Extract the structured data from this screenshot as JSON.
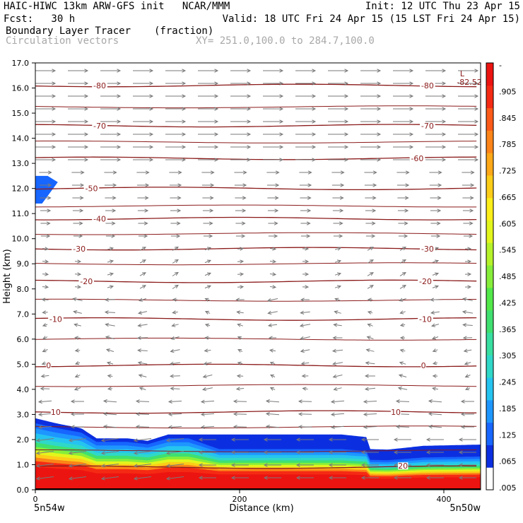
{
  "header": {
    "line1_left": "HAIC-HIWC 13km ARW-GFS init   NCAR/MMM",
    "line1_right": "Init: 12 UTC Thu 23 Apr 15",
    "line2_left": "Fcst:   30 h",
    "line2_right": "Valid: 18 UTC Fri 24 Apr 15 (15 LST Fri 24 Apr 15)",
    "field_name": "Boundary Layer Tracer",
    "field_units": "(fraction)",
    "vectors_label": "Circulation vectors",
    "xy_label": "XY= 251.0,100.0 to 284.7,100.0"
  },
  "colors": {
    "contour": "#8b1a1a",
    "vector": "#7a7a7a",
    "palette": [
      "#ffffff",
      "#0b2fe0",
      "#1766ff",
      "#1e96ff",
      "#25c4f0",
      "#2fd8c8",
      "#38dfa0",
      "#3fe070",
      "#52e84a",
      "#86ee3a",
      "#b6f22a",
      "#e2f51c",
      "#fcee18",
      "#fccd18",
      "#fca818",
      "#fc8418",
      "#fc5a18",
      "#f52a14",
      "#ec1410"
    ]
  },
  "chart_data": {
    "type": "vertical cross-section",
    "xlabel": "Distance (km)",
    "ylabel": "Height (km)",
    "xlim": [
      0,
      436
    ],
    "ylim": [
      0,
      17
    ],
    "x_ticks": [
      "0",
      "200",
      "400"
    ],
    "x_tick_values": [
      0,
      200,
      400
    ],
    "y_ticks": [
      "0.0",
      "1.0",
      "2.0",
      "3.0",
      "4.0",
      "5.0",
      "6.0",
      "7.0",
      "8.0",
      "9.0",
      "10.0",
      "11.0",
      "12.0",
      "13.0",
      "14.0",
      "15.0",
      "16.0",
      "17.0"
    ],
    "endpoint_left": "5n54w",
    "endpoint_right": "5n50w",
    "colorbar_labels": [
      "-",
      ".905",
      ".845",
      ".785",
      ".725",
      ".665",
      ".605",
      ".545",
      ".485",
      ".425",
      ".365",
      ".305",
      ".245",
      ".185",
      ".125",
      ".065",
      ".005"
    ],
    "isotherms": [
      {
        "label": "-80",
        "height": 16.1
      },
      {
        "label": "-70",
        "height": 14.5
      },
      {
        "label": "-60",
        "height": 13.2
      },
      {
        "label": "-50",
        "height": 12.0
      },
      {
        "label": "-40",
        "height": 10.8
      },
      {
        "label": "-30",
        "height": 9.6
      },
      {
        "label": "-20",
        "height": 8.3
      },
      {
        "label": "-10",
        "height": 6.8
      },
      {
        "label": "0",
        "height": 4.95
      },
      {
        "label": "10",
        "height": 3.1
      },
      {
        "label": "20",
        "height": 0.9
      }
    ],
    "contour_labels": [
      {
        "text": "-80",
        "x": 63,
        "y": 16.1
      },
      {
        "text": "-80",
        "x": 384,
        "y": 16.1
      },
      {
        "text": "-70",
        "x": 63,
        "y": 14.5
      },
      {
        "text": "-70",
        "x": 384,
        "y": 14.5
      },
      {
        "text": "-60",
        "x": 374,
        "y": 13.2
      },
      {
        "text": "-50",
        "x": 55,
        "y": 12.0
      },
      {
        "text": "-40",
        "x": 63,
        "y": 10.8
      },
      {
        "text": "-30",
        "x": 43,
        "y": 9.6
      },
      {
        "text": "-30",
        "x": 384,
        "y": 9.6
      },
      {
        "text": "-20",
        "x": 50,
        "y": 8.3
      },
      {
        "text": "-20",
        "x": 382,
        "y": 8.3
      },
      {
        "text": "-10",
        "x": 20,
        "y": 6.8
      },
      {
        "text": "-10",
        "x": 382,
        "y": 6.8
      },
      {
        "text": "0",
        "x": 13,
        "y": 4.95
      },
      {
        "text": "0",
        "x": 380,
        "y": 4.95
      },
      {
        "text": "10",
        "x": 20,
        "y": 3.1
      },
      {
        "text": "10",
        "x": 353,
        "y": 3.1
      },
      {
        "text": "20",
        "x": 360,
        "y": 0.95
      }
    ],
    "minimum": {
      "marker": "L",
      "value": "-82.52",
      "x": 418,
      "y": 16.3
    },
    "tracer_top_height": [
      [
        0,
        2.85
      ],
      [
        20,
        2.65
      ],
      [
        45,
        2.45
      ],
      [
        60,
        2.05
      ],
      [
        90,
        2.05
      ],
      [
        110,
        1.95
      ],
      [
        130,
        2.2
      ],
      [
        170,
        2.2
      ],
      [
        210,
        2.2
      ],
      [
        260,
        2.2
      ],
      [
        300,
        2.2
      ],
      [
        324,
        2.1
      ],
      [
        328,
        1.62
      ],
      [
        345,
        1.6
      ],
      [
        380,
        1.75
      ],
      [
        436,
        1.8
      ]
    ],
    "upper_tracer_blob": {
      "x": [
        0,
        22
      ],
      "height": [
        11.4,
        12.5
      ]
    },
    "wind_regimes": [
      {
        "layer_km": [
          13,
          17
        ],
        "direction": "eastward"
      },
      {
        "layer_km": [
          8,
          13
        ],
        "direction": "eastward, weak"
      },
      {
        "layer_km": [
          4,
          8
        ],
        "direction": "westward, weak"
      },
      {
        "layer_km": [
          0,
          3
        ],
        "direction": "westward"
      }
    ]
  }
}
